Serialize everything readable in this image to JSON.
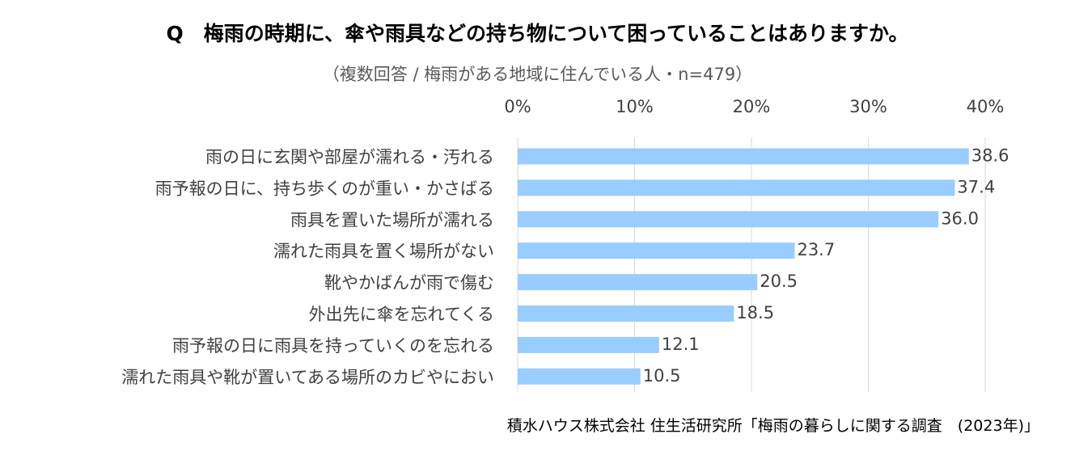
{
  "chart_data": {
    "type": "bar",
    "orientation": "horizontal",
    "title": "Q　梅雨の時期に、傘や雨具などの持ち物について困っていることはありますか。",
    "subtitle": "（複数回答 / 梅雨がある地域に住んでいる人・n=479）",
    "categories": [
      "雨の日に玄関や部屋が濡れる・汚れる",
      "雨予報の日に、持ち歩くのが重い・かさばる",
      "雨具を置いた場所が濡れる",
      "濡れた雨具を置く場所がない",
      "靴やかばんが雨で傷む",
      "外出先に傘を忘れてくる",
      "雨予報の日に雨具を持っていくのを忘れる",
      "濡れた雨具や靴が置いてある場所のカビやにおい"
    ],
    "values": [
      38.6,
      37.4,
      36.0,
      23.7,
      20.5,
      18.5,
      12.1,
      10.5
    ],
    "value_labels": [
      "38.6",
      "37.4",
      "36.0",
      "23.7",
      "20.5",
      "18.5",
      "12.1",
      "10.5"
    ],
    "xlim": [
      0,
      40
    ],
    "x_ticks": [
      "0%",
      "10%",
      "20%",
      "30%",
      "40%"
    ],
    "x_axis_position": "top",
    "grid": true,
    "bar_color": "#99CCFF",
    "grid_color": "#D9D9D9"
  },
  "source": "積水ハウス株式会社 住生活研究所「梅雨の暮らしに関する調査　(2023年)」"
}
